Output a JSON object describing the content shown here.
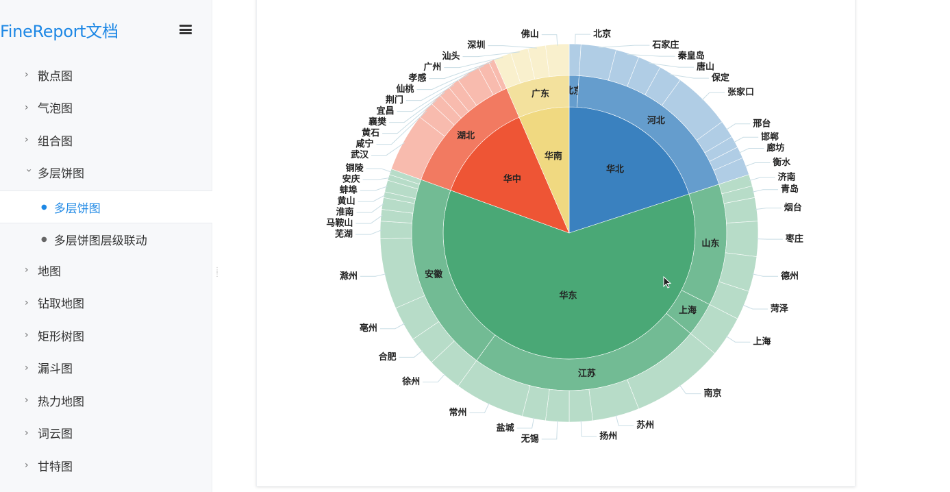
{
  "sidebar": {
    "brand": "FineReport文档",
    "items": [
      {
        "label": "散点图",
        "expanded": false
      },
      {
        "label": "气泡图",
        "expanded": false
      },
      {
        "label": "组合图",
        "expanded": false
      },
      {
        "label": "多层饼图",
        "expanded": true,
        "children": [
          {
            "label": "多层饼图",
            "active": true
          },
          {
            "label": "多层饼图层级联动",
            "active": false
          }
        ]
      },
      {
        "label": "地图",
        "expanded": false
      },
      {
        "label": "钻取地图",
        "expanded": false
      },
      {
        "label": "矩形树图",
        "expanded": false
      },
      {
        "label": "漏斗图",
        "expanded": false
      },
      {
        "label": "热力地图",
        "expanded": false
      },
      {
        "label": "词云图",
        "expanded": false
      },
      {
        "label": "甘特图",
        "expanded": false
      }
    ]
  },
  "chart_data": {
    "type": "multi-level-pie",
    "levels": 3,
    "regions": [
      {
        "name": "华北",
        "value": 20,
        "color": "#3a81bf",
        "provinces": [
          {
            "name": "北京",
            "value": 1,
            "cities": [
              {
                "name": "北京",
                "value": 1
              }
            ]
          },
          {
            "name": "河北",
            "value": 19,
            "cities": [
              {
                "name": "石家庄",
                "value": 3
              },
              {
                "name": "秦皇岛",
                "value": 2
              },
              {
                "name": "唐山",
                "value": 2
              },
              {
                "name": "保定",
                "value": 2
              },
              {
                "name": "张家口",
                "value": 5
              },
              {
                "name": "邢台",
                "value": 1.5
              },
              {
                "name": "邯郸",
                "value": 1
              },
              {
                "name": "廊坊",
                "value": 1
              },
              {
                "name": "衡水",
                "value": 1.5
              }
            ]
          }
        ]
      },
      {
        "name": "华东",
        "value": 60.5,
        "color": "#4aa876",
        "provinces": [
          {
            "name": "山东",
            "value": 12.5,
            "cities": [
              {
                "name": "济南",
                "value": 1
              },
              {
                "name": "青岛",
                "value": 1
              },
              {
                "name": "烟台",
                "value": 2
              },
              {
                "name": "枣庄",
                "value": 3
              },
              {
                "name": "德州",
                "value": 3
              },
              {
                "name": "菏泽",
                "value": 2.5
              }
            ]
          },
          {
            "name": "上海",
            "value": 3.5,
            "cities": [
              {
                "name": "上海",
                "value": 3.5
              }
            ]
          },
          {
            "name": "江苏",
            "value": 24,
            "cities": [
              {
                "name": "南京",
                "value": 8
              },
              {
                "name": "苏州",
                "value": 4
              },
              {
                "name": "扬州",
                "value": 2
              },
              {
                "name": "无锡",
                "value": 2
              },
              {
                "name": "盐城",
                "value": 2
              },
              {
                "name": "常州",
                "value": 6
              }
            ]
          },
          {
            "name": "安徽",
            "value": 20.5,
            "cities": [
              {
                "name": "徐州",
                "value": 3
              },
              {
                "name": "合肥",
                "value": 2.5
              },
              {
                "name": "亳州",
                "value": 3
              },
              {
                "name": "滁州",
                "value": 6
              },
              {
                "name": "芜湖",
                "value": 1.5
              },
              {
                "name": "马鞍山",
                "value": 1
              },
              {
                "name": "淮南",
                "value": 1
              },
              {
                "name": "黄山",
                "value": 0.5
              },
              {
                "name": "蚌埠",
                "value": 1
              },
              {
                "name": "安庆",
                "value": 0.5
              },
              {
                "name": "铜陵",
                "value": 0.5
              }
            ]
          }
        ]
      },
      {
        "name": "华中",
        "value": 13,
        "color": "#ee5535",
        "provinces": [
          {
            "name": "湖北",
            "value": 13,
            "cities": [
              {
                "name": "武汉",
                "value": 5
              },
              {
                "name": "咸宁",
                "value": 1.5
              },
              {
                "name": "黄石",
                "value": 1
              },
              {
                "name": "襄樊",
                "value": 1
              },
              {
                "name": "宜昌",
                "value": 1
              },
              {
                "name": "荆门",
                "value": 2
              },
              {
                "name": "仙桃",
                "value": 1
              },
              {
                "name": "孝感",
                "value": 0.5
              }
            ]
          }
        ]
      },
      {
        "name": "华南",
        "value": 6.5,
        "color": "#f0d981",
        "provinces": [
          {
            "name": "广东",
            "value": 6.5,
            "cities": [
              {
                "name": "广州",
                "value": 1.5
              },
              {
                "name": "汕头",
                "value": 1.5
              },
              {
                "name": "深圳",
                "value": 1.5
              },
              {
                "name": "佛山",
                "value": 2
              }
            ]
          }
        ]
      }
    ]
  }
}
